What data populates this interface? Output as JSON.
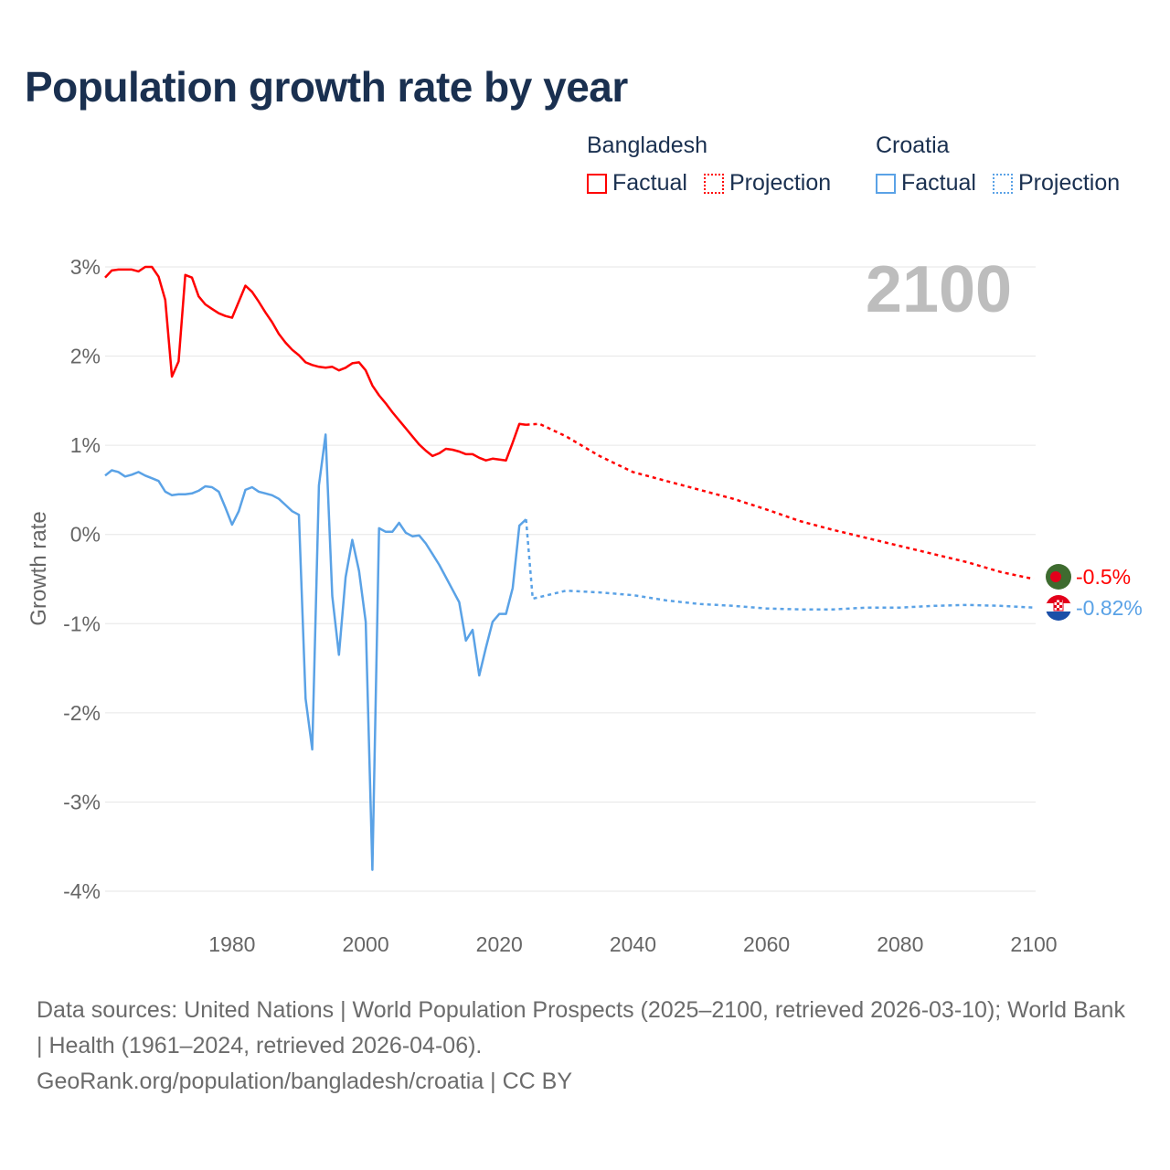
{
  "title": "Population growth rate by year",
  "legend": [
    {
      "country": "Bangladesh",
      "factual": "Factual",
      "projection": "Projection",
      "color": "#ff0000"
    },
    {
      "country": "Croatia",
      "factual": "Factual",
      "projection": "Projection",
      "color": "#5aa2e6"
    }
  ],
  "footer": {
    "sources": "Data sources: United Nations | World Population Prospects (2025–2100, retrieved 2026-03-10); World Bank | Health (1961–2024, retrieved 2026-04-06).",
    "link": "GeoRank.org/population/bangladesh/croatia | CC BY"
  },
  "chart_data": {
    "type": "line",
    "title": "Population growth rate by year",
    "ylabel": "Growth rate",
    "xlabel": "",
    "xlim": [
      1961,
      2100
    ],
    "ylim": [
      -4,
      3
    ],
    "grid": true,
    "year_label": "2100",
    "x_ticks": [
      "1980",
      "2000",
      "2020",
      "2040",
      "2060",
      "2080",
      "2100"
    ],
    "x_tick_values": [
      1980,
      2000,
      2020,
      2040,
      2060,
      2080,
      2100
    ],
    "y_ticks": [
      "3%",
      "2%",
      "1%",
      "0%",
      "-1%",
      "-2%",
      "-3%",
      "-4%"
    ],
    "y_tick_values": [
      3,
      2,
      1,
      0,
      -1,
      -2,
      -3,
      -4
    ],
    "series": [
      {
        "name": "Bangladesh",
        "color": "#ff0000",
        "end_label": "-0.5%",
        "factual_start": 1961,
        "factual": [
          2.88,
          2.96,
          2.97,
          2.97,
          2.97,
          2.95,
          3.0,
          3.0,
          2.89,
          2.63,
          1.77,
          1.94,
          2.91,
          2.88,
          2.67,
          2.58,
          2.53,
          2.48,
          2.45,
          2.43,
          2.61,
          2.79,
          2.72,
          2.61,
          2.49,
          2.38,
          2.25,
          2.15,
          2.07,
          2.01,
          1.93,
          1.9,
          1.88,
          1.87,
          1.88,
          1.84,
          1.87,
          1.92,
          1.93,
          1.84,
          1.67,
          1.56,
          1.47,
          1.37,
          1.28,
          1.19,
          1.1,
          1.01,
          0.94,
          0.88,
          0.91,
          0.96,
          0.95,
          0.93,
          0.9,
          0.9,
          0.86,
          0.83,
          0.85,
          0.84,
          0.83,
          1.03,
          1.24,
          1.23
        ],
        "projection_years": [
          2024,
          2026,
          2030,
          2035,
          2040,
          2045,
          2050,
          2055,
          2060,
          2065,
          2070,
          2075,
          2080,
          2085,
          2090,
          2095,
          2100
        ],
        "projection": [
          1.23,
          1.24,
          1.1,
          0.88,
          0.7,
          0.6,
          0.5,
          0.4,
          0.28,
          0.15,
          0.05,
          -0.04,
          -0.13,
          -0.22,
          -0.31,
          -0.42,
          -0.5
        ]
      },
      {
        "name": "Croatia",
        "color": "#5aa2e6",
        "end_label": "-0.82%",
        "factual_start": 1961,
        "factual": [
          0.66,
          0.72,
          0.7,
          0.65,
          0.67,
          0.7,
          0.66,
          0.63,
          0.6,
          0.48,
          0.44,
          0.45,
          0.45,
          0.46,
          0.49,
          0.54,
          0.53,
          0.48,
          0.3,
          0.11,
          0.26,
          0.5,
          0.53,
          0.48,
          0.46,
          0.44,
          0.4,
          0.33,
          0.26,
          0.22,
          -1.84,
          -2.41,
          0.55,
          1.12,
          -0.69,
          -1.35,
          -0.48,
          -0.06,
          -0.41,
          -0.98,
          -3.76,
          0.07,
          0.03,
          0.03,
          0.13,
          0.02,
          -0.02,
          -0.01,
          -0.1,
          -0.22,
          -0.34,
          -0.48,
          -0.62,
          -0.76,
          -1.19,
          -1.07,
          -1.58,
          -1.27,
          -0.98,
          -0.89,
          -0.89,
          -0.6,
          0.1,
          0.17
        ],
        "projection_years": [
          2024,
          2025,
          2030,
          2035,
          2040,
          2045,
          2050,
          2055,
          2060,
          2065,
          2070,
          2075,
          2080,
          2085,
          2090,
          2095,
          2100
        ],
        "projection": [
          0.17,
          -0.72,
          -0.63,
          -0.65,
          -0.68,
          -0.74,
          -0.78,
          -0.8,
          -0.83,
          -0.84,
          -0.84,
          -0.82,
          -0.82,
          -0.8,
          -0.79,
          -0.8,
          -0.82
        ]
      }
    ]
  }
}
